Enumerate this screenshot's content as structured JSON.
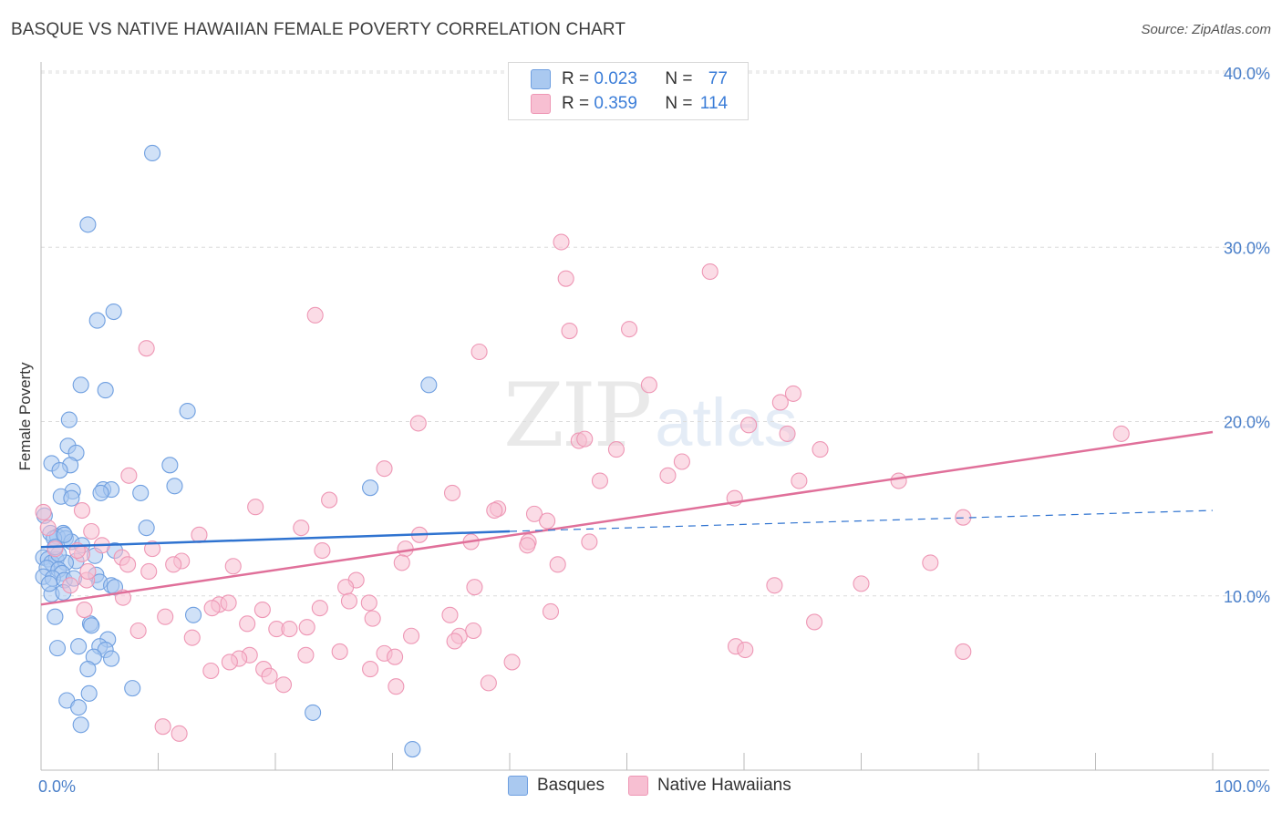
{
  "header": {
    "title": "BASQUE VS NATIVE HAWAIIAN FEMALE POVERTY CORRELATION CHART",
    "source": "Source: ZipAtlas.com"
  },
  "watermark": {
    "part1": "ZIP",
    "part2": "atlas"
  },
  "legend": {
    "rows": [
      {
        "r_label": "R =",
        "r_value": "0.023",
        "n_label": "N =",
        "n_value": "77"
      },
      {
        "r_label": "R =",
        "r_value": "0.359",
        "n_label": "N =",
        "n_value": "114"
      }
    ]
  },
  "bottom_legend": {
    "series1": "Basques",
    "series2": "Native Hawaiians"
  },
  "colors": {
    "basques_fill": "#aac9f0",
    "basques_stroke": "#6f9fe0",
    "basques_line": "#2f73d0",
    "hawaiians_fill": "#f7bfd2",
    "hawaiians_stroke": "#ee97b5",
    "hawaiians_line": "#e0709a"
  },
  "chart_data": {
    "type": "scatter",
    "title": "BASQUE VS NATIVE HAWAIIAN FEMALE POVERTY CORRELATION CHART",
    "xlabel": "",
    "ylabel": "Female Poverty",
    "xlim": [
      0,
      100
    ],
    "ylim": [
      0,
      40
    ],
    "x_tick_labels": [
      "0.0%",
      "100.0%"
    ],
    "y_ticks": [
      10,
      20,
      30,
      40
    ],
    "y_tick_labels": [
      "10.0%",
      "20.0%",
      "30.0%",
      "40.0%"
    ],
    "grid": true,
    "legend_position": "top-center",
    "series": [
      {
        "name": "Basques",
        "R": 0.023,
        "N": 77,
        "trend": {
          "x0": 0,
          "y0": 12.8,
          "x1": 40,
          "y1": 13.7,
          "dash_x_end": 100,
          "dash_y_end": 14.9
        },
        "points": [
          [
            9.5,
            35.4
          ],
          [
            4.0,
            31.3
          ],
          [
            6.2,
            26.3
          ],
          [
            4.8,
            25.8
          ],
          [
            3.4,
            22.1
          ],
          [
            5.5,
            21.8
          ],
          [
            12.5,
            20.6
          ],
          [
            2.4,
            20.1
          ],
          [
            33.1,
            22.1
          ],
          [
            2.3,
            18.6
          ],
          [
            3.0,
            18.2
          ],
          [
            0.9,
            17.6
          ],
          [
            2.5,
            17.5
          ],
          [
            11.0,
            17.5
          ],
          [
            1.6,
            17.2
          ],
          [
            11.4,
            16.3
          ],
          [
            28.1,
            16.2
          ],
          [
            5.3,
            16.1
          ],
          [
            6.0,
            16.1
          ],
          [
            2.7,
            16.0
          ],
          [
            8.5,
            15.9
          ],
          [
            5.1,
            15.9
          ],
          [
            1.7,
            15.7
          ],
          [
            2.6,
            15.6
          ],
          [
            0.3,
            14.6
          ],
          [
            9.0,
            13.9
          ],
          [
            0.8,
            13.6
          ],
          [
            1.9,
            13.6
          ],
          [
            1.4,
            13.4
          ],
          [
            2.1,
            13.3
          ],
          [
            1.1,
            13.3
          ],
          [
            2.6,
            13.1
          ],
          [
            6.3,
            12.6
          ],
          [
            4.6,
            12.3
          ],
          [
            0.2,
            12.2
          ],
          [
            0.6,
            12.1
          ],
          [
            1.3,
            12.1
          ],
          [
            3.0,
            12.0
          ],
          [
            0.9,
            11.9
          ],
          [
            2.1,
            11.9
          ],
          [
            0.5,
            11.6
          ],
          [
            1.5,
            11.5
          ],
          [
            1.8,
            11.3
          ],
          [
            0.2,
            11.1
          ],
          [
            1.0,
            11.0
          ],
          [
            4.7,
            11.2
          ],
          [
            2.0,
            10.9
          ],
          [
            5.0,
            10.8
          ],
          [
            6.0,
            10.6
          ],
          [
            6.3,
            10.5
          ],
          [
            0.9,
            10.1
          ],
          [
            1.9,
            10.2
          ],
          [
            13.0,
            8.9
          ],
          [
            1.2,
            8.8
          ],
          [
            4.2,
            8.4
          ],
          [
            4.3,
            8.3
          ],
          [
            5.7,
            7.5
          ],
          [
            3.2,
            7.1
          ],
          [
            1.4,
            7.0
          ],
          [
            5.0,
            7.1
          ],
          [
            5.5,
            6.9
          ],
          [
            4.5,
            6.5
          ],
          [
            6.0,
            6.4
          ],
          [
            4.0,
            5.8
          ],
          [
            7.8,
            4.7
          ],
          [
            4.1,
            4.4
          ],
          [
            2.2,
            4.0
          ],
          [
            3.2,
            3.6
          ],
          [
            23.2,
            3.3
          ],
          [
            3.4,
            2.6
          ],
          [
            31.7,
            1.2
          ],
          [
            2.0,
            13.5
          ],
          [
            3.5,
            12.9
          ],
          [
            1.5,
            12.4
          ],
          [
            0.7,
            10.7
          ],
          [
            2.8,
            11.0
          ],
          [
            1.2,
            12.8
          ]
        ]
      },
      {
        "name": "Native Hawaiians",
        "R": 0.359,
        "N": 114,
        "trend": {
          "x0": 0,
          "y0": 9.5,
          "x1": 100,
          "y1": 19.4
        },
        "points": [
          [
            44.4,
            30.3
          ],
          [
            44.8,
            28.2
          ],
          [
            57.1,
            28.6
          ],
          [
            23.4,
            26.1
          ],
          [
            45.1,
            25.2
          ],
          [
            50.2,
            25.3
          ],
          [
            9.0,
            24.2
          ],
          [
            37.4,
            24.0
          ],
          [
            51.9,
            22.1
          ],
          [
            64.2,
            21.6
          ],
          [
            63.1,
            21.1
          ],
          [
            32.2,
            19.9
          ],
          [
            60.4,
            19.8
          ],
          [
            45.9,
            18.9
          ],
          [
            46.4,
            19.0
          ],
          [
            63.7,
            19.3
          ],
          [
            92.2,
            19.3
          ],
          [
            49.1,
            18.4
          ],
          [
            66.5,
            18.4
          ],
          [
            54.7,
            17.7
          ],
          [
            29.3,
            17.3
          ],
          [
            73.2,
            16.6
          ],
          [
            53.5,
            16.9
          ],
          [
            47.7,
            16.6
          ],
          [
            64.7,
            16.6
          ],
          [
            7.5,
            16.9
          ],
          [
            35.1,
            15.9
          ],
          [
            18.3,
            15.1
          ],
          [
            24.6,
            15.5
          ],
          [
            59.2,
            15.6
          ],
          [
            39.0,
            15.0
          ],
          [
            42.1,
            14.7
          ],
          [
            38.7,
            14.9
          ],
          [
            3.5,
            14.9
          ],
          [
            43.2,
            14.3
          ],
          [
            78.7,
            14.5
          ],
          [
            4.3,
            13.7
          ],
          [
            22.2,
            13.9
          ],
          [
            13.5,
            13.5
          ],
          [
            32.3,
            13.5
          ],
          [
            12.0,
            12.0
          ],
          [
            36.7,
            13.1
          ],
          [
            41.6,
            13.1
          ],
          [
            46.8,
            13.1
          ],
          [
            9.5,
            12.7
          ],
          [
            6.9,
            12.2
          ],
          [
            24.0,
            12.6
          ],
          [
            31.1,
            12.7
          ],
          [
            41.5,
            12.9
          ],
          [
            30.8,
            11.9
          ],
          [
            3.5,
            12.4
          ],
          [
            16.4,
            11.7
          ],
          [
            11.3,
            11.8
          ],
          [
            7.4,
            11.8
          ],
          [
            9.2,
            11.4
          ],
          [
            44.1,
            11.8
          ],
          [
            75.9,
            11.9
          ],
          [
            26.9,
            10.9
          ],
          [
            26.0,
            10.5
          ],
          [
            37.0,
            10.5
          ],
          [
            62.6,
            10.6
          ],
          [
            70.0,
            10.7
          ],
          [
            3.9,
            10.9
          ],
          [
            26.3,
            9.7
          ],
          [
            28.0,
            9.6
          ],
          [
            15.2,
            9.5
          ],
          [
            16.0,
            9.6
          ],
          [
            14.6,
            9.3
          ],
          [
            18.9,
            9.2
          ],
          [
            23.8,
            9.3
          ],
          [
            34.9,
            8.9
          ],
          [
            43.5,
            9.1
          ],
          [
            3.7,
            9.2
          ],
          [
            10.6,
            8.8
          ],
          [
            28.3,
            8.7
          ],
          [
            17.6,
            8.4
          ],
          [
            20.1,
            8.1
          ],
          [
            21.2,
            8.1
          ],
          [
            22.7,
            8.2
          ],
          [
            35.7,
            7.7
          ],
          [
            36.9,
            8.0
          ],
          [
            12.9,
            7.6
          ],
          [
            31.6,
            7.7
          ],
          [
            35.3,
            7.4
          ],
          [
            22.6,
            6.6
          ],
          [
            17.8,
            6.6
          ],
          [
            29.3,
            6.7
          ],
          [
            25.5,
            6.8
          ],
          [
            30.2,
            6.5
          ],
          [
            16.9,
            6.4
          ],
          [
            59.3,
            7.1
          ],
          [
            60.1,
            6.9
          ],
          [
            78.7,
            6.8
          ],
          [
            66.0,
            8.5
          ],
          [
            16.1,
            6.2
          ],
          [
            40.2,
            6.2
          ],
          [
            28.1,
            5.8
          ],
          [
            14.5,
            5.7
          ],
          [
            19.0,
            5.8
          ],
          [
            19.5,
            5.4
          ],
          [
            20.7,
            4.9
          ],
          [
            30.3,
            4.8
          ],
          [
            38.2,
            5.0
          ],
          [
            10.4,
            2.5
          ],
          [
            11.8,
            2.1
          ],
          [
            8.3,
            8.0
          ],
          [
            4.0,
            11.4
          ],
          [
            7.0,
            9.9
          ],
          [
            2.5,
            10.6
          ],
          [
            5.2,
            12.9
          ],
          [
            3.1,
            12.6
          ],
          [
            0.6,
            13.9
          ],
          [
            1.2,
            12.7
          ],
          [
            0.2,
            14.8
          ]
        ]
      }
    ]
  }
}
